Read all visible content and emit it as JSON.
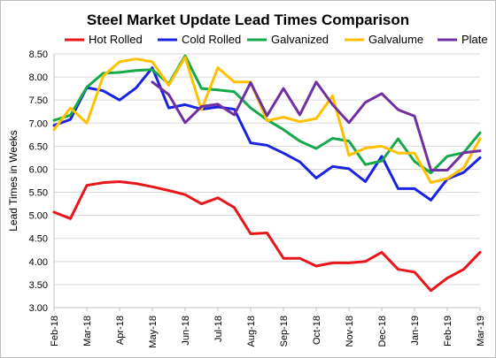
{
  "chart_data": {
    "type": "line",
    "title": "Steel Market Update Lead Times Comparison",
    "ylabel": "Lead Times in Weeks",
    "xlabel": "",
    "ylim": [
      3.0,
      8.5
    ],
    "yticks": [
      3.0,
      3.5,
      4.0,
      4.5,
      5.0,
      5.5,
      6.0,
      6.5,
      7.0,
      7.5,
      8.0,
      8.5
    ],
    "grid": "horizontal",
    "legend_position": "top",
    "x_labels": [
      "Feb-18",
      "Mar-18",
      "Apr-18",
      "May-18",
      "Jun-18",
      "Jul-18",
      "Aug-18",
      "Sep-18",
      "Oct-18",
      "Nov-18",
      "Dec-18",
      "Jan-19",
      "Feb-19",
      "Mar-19"
    ],
    "x_range": [
      0,
      52
    ],
    "series": [
      {
        "name": "Hot Rolled",
        "color": "#e8161b",
        "x": [
          0,
          2,
          4,
          6,
          8,
          10,
          12,
          14,
          16,
          18,
          20,
          22,
          24,
          26,
          28,
          30,
          32,
          34,
          36,
          38,
          40,
          42,
          44,
          46,
          48,
          50,
          52
        ],
        "values": [
          5.07,
          4.93,
          5.65,
          5.71,
          5.73,
          5.69,
          5.62,
          5.54,
          5.45,
          5.25,
          5.38,
          5.17,
          4.6,
          4.62,
          4.07,
          4.07,
          3.9,
          3.97,
          3.97,
          4.0,
          4.2,
          3.83,
          3.77,
          3.37,
          3.64,
          3.83,
          4.2
        ]
      },
      {
        "name": "Cold Rolled",
        "color": "#1a23e0",
        "x": [
          0,
          2,
          4,
          6,
          8,
          10,
          12,
          14,
          16,
          18,
          20,
          22,
          24,
          26,
          28,
          30,
          32,
          34,
          36,
          38,
          40,
          42,
          44,
          46,
          48,
          50,
          52
        ],
        "values": [
          6.95,
          7.08,
          7.77,
          7.7,
          7.5,
          7.76,
          8.2,
          7.33,
          7.4,
          7.3,
          7.35,
          7.3,
          6.57,
          6.52,
          6.35,
          6.16,
          5.81,
          6.06,
          6.01,
          5.73,
          6.28,
          5.58,
          5.58,
          5.33,
          5.79,
          5.93,
          6.25
        ]
      },
      {
        "name": "Galvanized",
        "color": "#17a84b",
        "x": [
          0,
          2,
          4,
          6,
          8,
          10,
          12,
          14,
          16,
          18,
          20,
          22,
          24,
          26,
          28,
          30,
          32,
          34,
          36,
          38,
          40,
          42,
          44,
          46,
          48,
          50,
          52
        ],
        "values": [
          7.06,
          7.17,
          7.78,
          8.08,
          8.1,
          8.14,
          8.16,
          7.85,
          8.46,
          7.75,
          7.72,
          7.68,
          7.33,
          7.07,
          6.86,
          6.61,
          6.45,
          6.67,
          6.61,
          6.1,
          6.18,
          6.66,
          6.17,
          5.92,
          6.28,
          6.36,
          6.79
        ]
      },
      {
        "name": "Galvalume",
        "color": "#ffc000",
        "x": [
          0,
          2,
          4,
          6,
          8,
          10,
          12,
          14,
          16,
          18,
          20,
          22,
          24,
          26,
          28,
          30,
          32,
          34,
          36,
          38,
          40,
          42,
          44,
          46,
          48,
          50,
          52
        ],
        "values": [
          6.86,
          7.33,
          7.0,
          8.02,
          8.33,
          8.39,
          8.33,
          7.82,
          8.43,
          7.29,
          8.2,
          7.89,
          7.89,
          7.05,
          7.13,
          7.03,
          7.1,
          7.59,
          6.3,
          6.46,
          6.5,
          6.35,
          6.35,
          5.71,
          5.8,
          6.03,
          6.66
        ]
      },
      {
        "name": "Plate",
        "color": "#7030a0",
        "x": [
          12,
          14,
          16,
          18,
          20,
          22,
          24,
          26,
          28,
          30,
          32,
          34,
          36,
          38,
          40,
          42,
          44,
          46,
          48,
          50,
          52
        ],
        "values": [
          7.89,
          7.62,
          7.01,
          7.36,
          7.41,
          7.18,
          7.88,
          7.16,
          7.75,
          7.18,
          7.89,
          7.4,
          7.01,
          7.45,
          7.64,
          7.29,
          7.15,
          5.98,
          5.98,
          6.36,
          6.4
        ]
      }
    ]
  }
}
